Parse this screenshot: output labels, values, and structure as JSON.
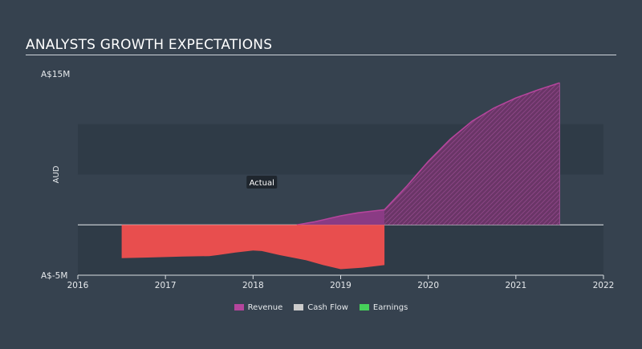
{
  "header": {
    "title": "ANALYSTS GROWTH EXPECTATIONS"
  },
  "chart_data": {
    "type": "area",
    "ylabel": "AUD",
    "y_top_label": "A$15M",
    "y_bottom_label": "A$-5M",
    "ylim": [
      -5,
      15
    ],
    "xlim": [
      2016,
      2022
    ],
    "x_ticks": [
      "2016",
      "2017",
      "2018",
      "2019",
      "2020",
      "2021",
      "2022"
    ],
    "annotation": "Actual",
    "actual_until": 2019.5,
    "grid": true,
    "legend_position": "bottom-center",
    "series": [
      {
        "name": "Revenue",
        "color": "#b5459c",
        "x": [
          2018.5,
          2018.7,
          2019.0,
          2019.2,
          2019.5,
          2019.75,
          2020.0,
          2020.25,
          2020.5,
          2020.75,
          2021.0,
          2021.25,
          2021.5
        ],
        "y": [
          0,
          0.3,
          0.9,
          1.2,
          1.5,
          3.8,
          6.3,
          8.5,
          10.3,
          11.6,
          12.6,
          13.4,
          14.1
        ]
      },
      {
        "name": "Cash Flow",
        "color": "#cccccc",
        "x": [],
        "y": []
      },
      {
        "name": "Earnings",
        "color": "#e84e4e",
        "legend_color": "#46d15a",
        "x": [
          2016.5,
          2016.8,
          2017.0,
          2017.2,
          2017.5,
          2017.6,
          2017.8,
          2018.0,
          2018.1,
          2018.3,
          2018.6,
          2018.8,
          2019.0,
          2019.1,
          2019.25,
          2019.5
        ],
        "y": [
          -3.3,
          -3.25,
          -3.2,
          -3.15,
          -3.1,
          -3.0,
          -2.75,
          -2.55,
          -2.6,
          -3.0,
          -3.5,
          -4.0,
          -4.4,
          -4.35,
          -4.25,
          -4.0
        ]
      }
    ]
  }
}
